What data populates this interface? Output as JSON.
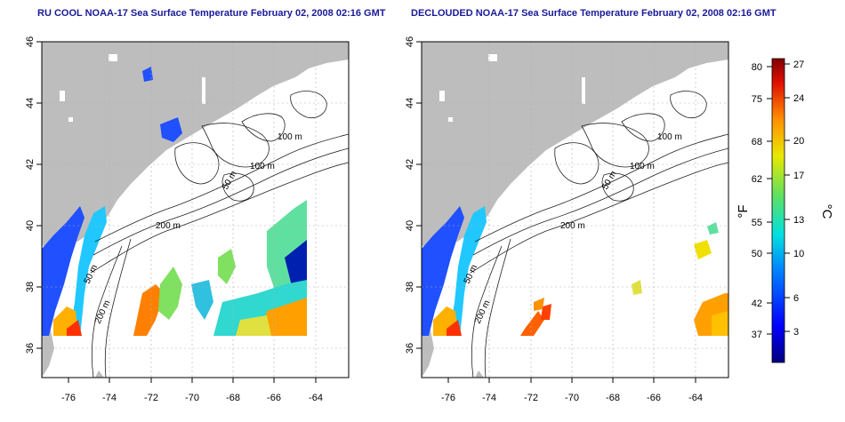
{
  "titles": {
    "left": "RU COOL NOAA-17 Sea Surface Temperature February 02, 2008 02:16 GMT",
    "right": "DECLOUDED NOAA-17 Sea Surface Temperature February 02, 2008 02:16 GMT"
  },
  "axes": {
    "lon_ticks": [
      "-76",
      "-74",
      "-72",
      "-70",
      "-68",
      "-66",
      "-64"
    ],
    "lat_ticks": [
      "46",
      "44",
      "42",
      "40",
      "38",
      "36"
    ]
  },
  "contours": {
    "c100a": "100 m",
    "c100b": "100 m",
    "c50a": "50 m",
    "c200a": "200 m",
    "c50b": "50 m",
    "c200b": "200 m"
  },
  "colorbar": {
    "unit_f": "°F",
    "unit_c": "°C",
    "f_ticks": [
      "80",
      "75",
      "68",
      "62",
      "55",
      "50",
      "42",
      "37"
    ],
    "c_ticks": [
      "27",
      "24",
      "20",
      "17",
      "13",
      "10",
      "6",
      "3"
    ]
  },
  "colors": {
    "land": "#bdbdbd",
    "grid": "#b0b0b0",
    "title": "#1a1a99"
  }
}
